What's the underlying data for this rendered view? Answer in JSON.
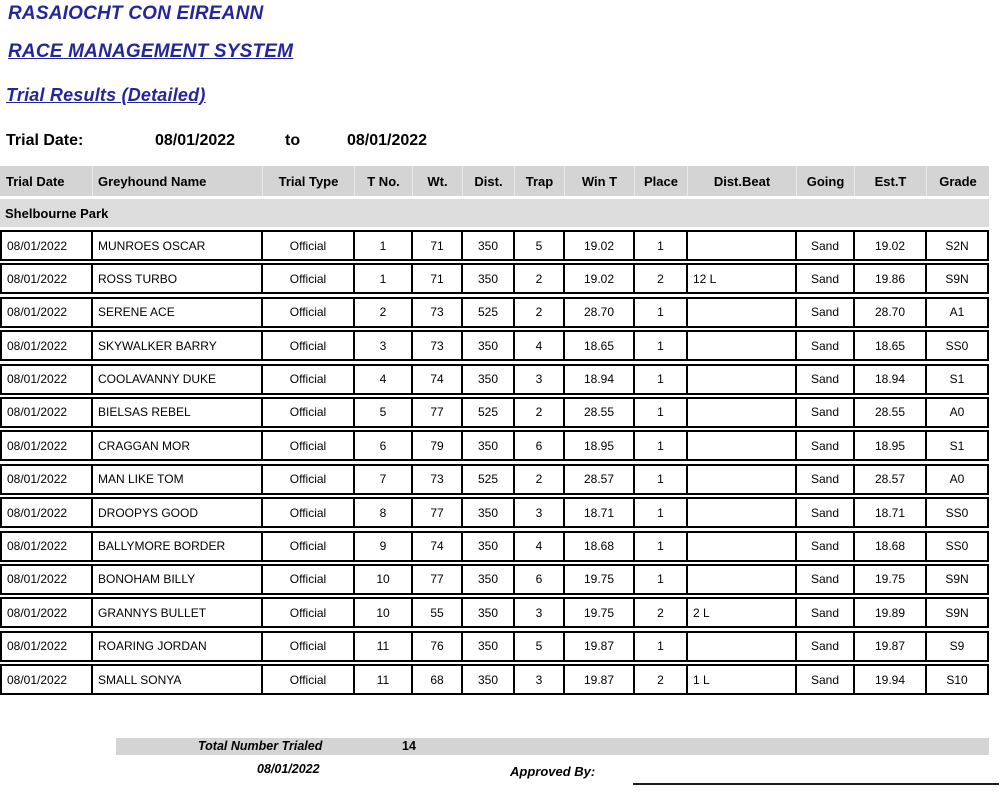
{
  "header": {
    "org_title": "RASAIOCHT CON EIREANN",
    "system_title": "RACE MANAGEMENT SYSTEM",
    "report_title": "Trial Results (Detailed)",
    "title_color": "#26269B"
  },
  "filter": {
    "label": "Trial Date:",
    "from_date": "08/01/2022",
    "to_label": "to",
    "to_date": "08/01/2022"
  },
  "table": {
    "columns": [
      "Trial Date",
      "Greyhound Name",
      "Trial Type",
      "T No.",
      "Wt.",
      "Dist.",
      "Trap",
      "Win T",
      "Place",
      "Dist.Beat",
      "Going",
      "Est.T",
      "Grade"
    ],
    "section": "Shelbourne Park",
    "header_bg": "#d4d4d4",
    "section_bg": "#dcdcdc",
    "rows": [
      [
        "08/01/2022",
        "MUNROES OSCAR",
        "Official",
        "1",
        "71",
        "350",
        "5",
        "19.02",
        "1",
        "",
        "Sand",
        "19.02",
        "S2N"
      ],
      [
        "08/01/2022",
        "ROSS TURBO",
        "Official",
        "1",
        "71",
        "350",
        "2",
        "19.02",
        "2",
        "12 L",
        "Sand",
        "19.86",
        "S9N"
      ],
      [
        "08/01/2022",
        "SERENE ACE",
        "Official",
        "2",
        "73",
        "525",
        "2",
        "28.70",
        "1",
        "",
        "Sand",
        "28.70",
        "A1"
      ],
      [
        "08/01/2022",
        "SKYWALKER BARRY",
        "Official",
        "3",
        "73",
        "350",
        "4",
        "18.65",
        "1",
        "",
        "Sand",
        "18.65",
        "SS0"
      ],
      [
        "08/01/2022",
        "COOLAVANNY DUKE",
        "Official",
        "4",
        "74",
        "350",
        "3",
        "18.94",
        "1",
        "",
        "Sand",
        "18.94",
        "S1"
      ],
      [
        "08/01/2022",
        "BIELSAS REBEL",
        "Official",
        "5",
        "77",
        "525",
        "2",
        "28.55",
        "1",
        "",
        "Sand",
        "28.55",
        "A0"
      ],
      [
        "08/01/2022",
        "CRAGGAN MOR",
        "Official",
        "6",
        "79",
        "350",
        "6",
        "18.95",
        "1",
        "",
        "Sand",
        "18.95",
        "S1"
      ],
      [
        "08/01/2022",
        "MAN LIKE TOM",
        "Official",
        "7",
        "73",
        "525",
        "2",
        "28.57",
        "1",
        "",
        "Sand",
        "28.57",
        "A0"
      ],
      [
        "08/01/2022",
        "DROOPYS GOOD",
        "Official",
        "8",
        "77",
        "350",
        "3",
        "18.71",
        "1",
        "",
        "Sand",
        "18.71",
        "SS0"
      ],
      [
        "08/01/2022",
        "BALLYMORE BORDER",
        "Official",
        "9",
        "74",
        "350",
        "4",
        "18.68",
        "1",
        "",
        "Sand",
        "18.68",
        "SS0"
      ],
      [
        "08/01/2022",
        "BONOHAM BILLY",
        "Official",
        "10",
        "77",
        "350",
        "6",
        "19.75",
        "1",
        "",
        "Sand",
        "19.75",
        "S9N"
      ],
      [
        "08/01/2022",
        "GRANNYS BULLET",
        "Official",
        "10",
        "55",
        "350",
        "3",
        "19.75",
        "2",
        "2 L",
        "Sand",
        "19.89",
        "S9N"
      ],
      [
        "08/01/2022",
        "ROARING JORDAN",
        "Official",
        "11",
        "76",
        "350",
        "5",
        "19.87",
        "1",
        "",
        "Sand",
        "19.87",
        "S9"
      ],
      [
        "08/01/2022",
        "SMALL SONYA",
        "Official",
        "11",
        "68",
        "350",
        "3",
        "19.87",
        "2",
        "1 L",
        "Sand",
        "19.94",
        "S10"
      ]
    ]
  },
  "footer": {
    "total_label": "Total Number Trialed",
    "total_value": "14",
    "report_date": "08/01/2022",
    "approved_label": "Approved By:"
  }
}
